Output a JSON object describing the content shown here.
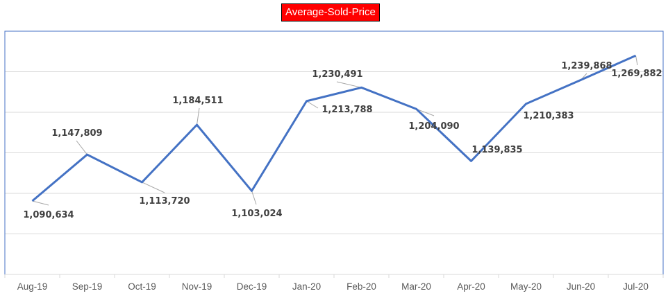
{
  "chart_data": {
    "type": "line",
    "title": "Average-Sold-Price",
    "categories": [
      "Aug-19",
      "Sep-19",
      "Oct-19",
      "Nov-19",
      "Dec-19",
      "Jan-20",
      "Feb-20",
      "Mar-20",
      "Apr-20",
      "May-20",
      "Jun-20",
      "Jul-20"
    ],
    "values": [
      1090634,
      1147809,
      1113720,
      1184511,
      1103024,
      1213788,
      1230491,
      1204090,
      1139835,
      1210383,
      1239868,
      1269882
    ],
    "data_labels": [
      "1,090,634",
      "1,147,809",
      "1,113,720",
      "1,184,511",
      "1,103,024",
      "1,213,788",
      "1,230,491",
      "1,204,090",
      "1,139,835",
      "1,210,383",
      "1,239,868",
      "1,269,882"
    ],
    "ylim": [
      1000000,
      1300000
    ],
    "y_gridline_step": 50000,
    "y_axis_labels_shown": false,
    "grid": true,
    "legend": "none",
    "colors": {
      "line": "#4472C4",
      "title_bg": "#FF0000",
      "title_text": "#FFFFFF",
      "gridline": "#D9D9D9",
      "plot_border": "#4472C4"
    }
  }
}
